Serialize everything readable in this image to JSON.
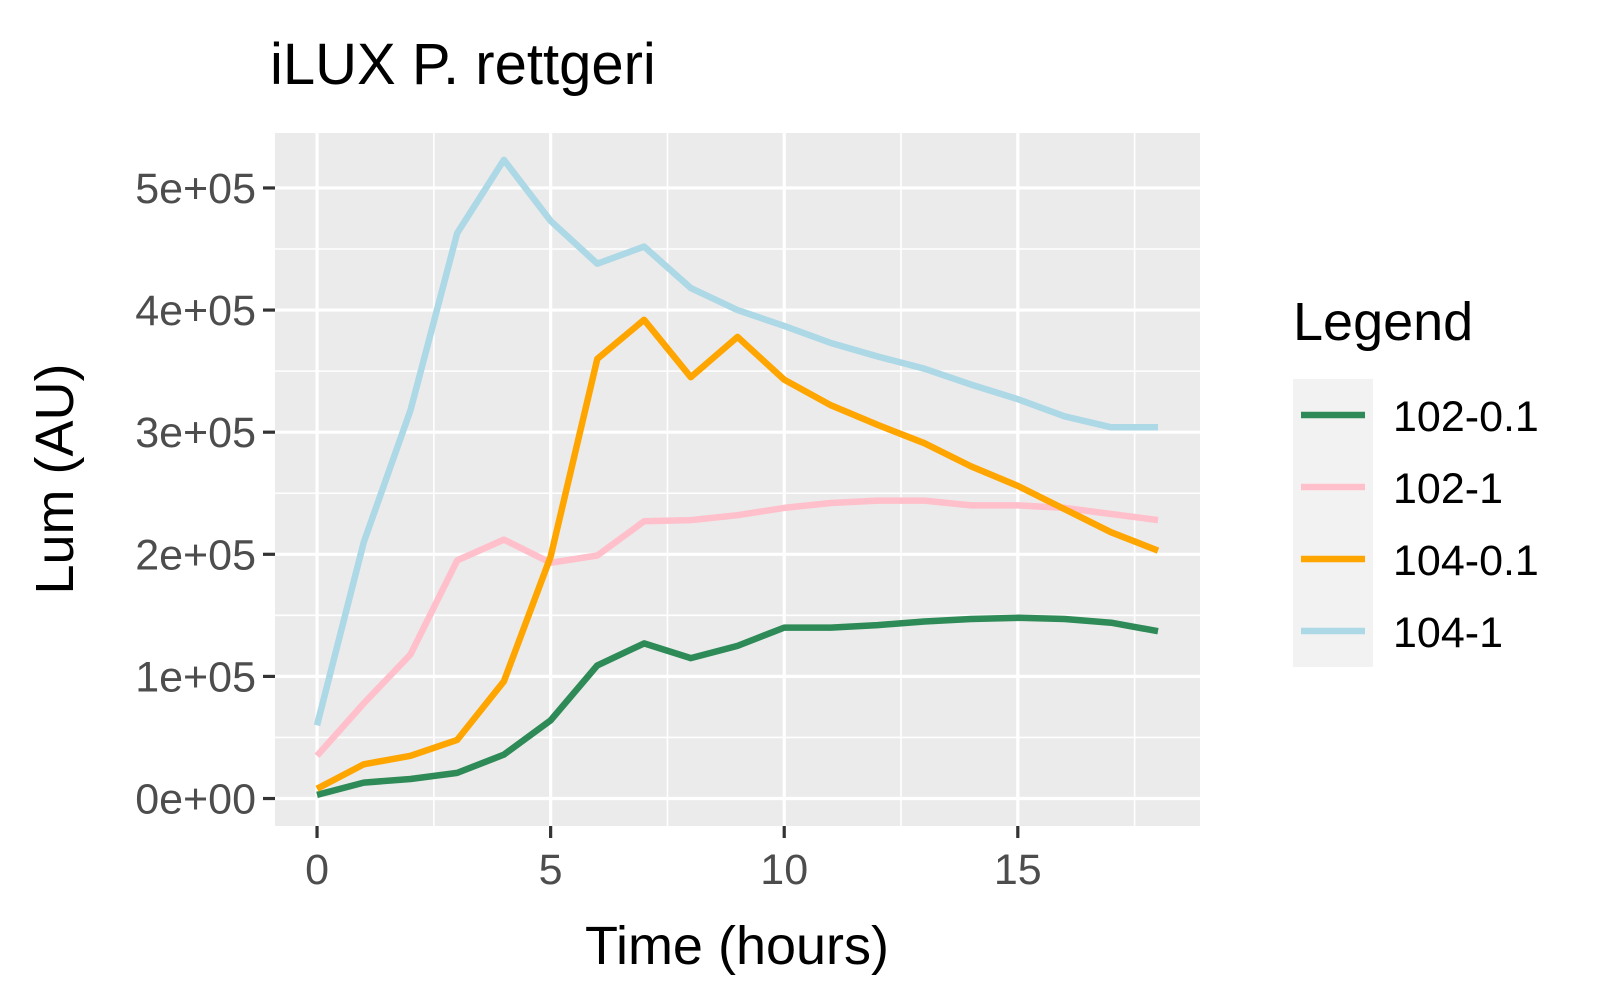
{
  "chart_data": {
    "type": "line",
    "title": "iLUX P. rettgeri",
    "xlabel": "Time (hours)",
    "ylabel": "Lum (AU)",
    "xlim": [
      -0.9,
      18.9
    ],
    "ylim": [
      -22500,
      545000
    ],
    "x_ticks": [
      0,
      5,
      10,
      15
    ],
    "x_tick_labels": [
      "0",
      "5",
      "10",
      "15"
    ],
    "y_ticks": [
      0,
      100000,
      200000,
      300000,
      400000,
      500000
    ],
    "y_tick_labels": [
      "0e+00",
      "1e+05",
      "2e+05",
      "3e+05",
      "4e+05",
      "5e+05"
    ],
    "grid": true,
    "legend": {
      "title": "Legend",
      "position": "right"
    },
    "x": [
      0,
      1,
      2,
      3,
      4,
      5,
      6,
      7,
      8,
      9,
      10,
      11,
      12,
      13,
      14,
      15,
      16,
      17,
      18
    ],
    "series": [
      {
        "name": "102-0.1",
        "color": "#2E8B57",
        "values": [
          3000,
          13000,
          16000,
          21000,
          36000,
          64000,
          109000,
          127000,
          115000,
          125000,
          140000,
          140000,
          142000,
          145000,
          147000,
          148000,
          147000,
          144000,
          137000
        ]
      },
      {
        "name": "102-1",
        "color": "#FFC0CB",
        "values": [
          35000,
          78000,
          118000,
          195000,
          212000,
          193000,
          199000,
          227000,
          228000,
          232000,
          238000,
          242000,
          244000,
          244000,
          240000,
          240000,
          238000,
          233000,
          228000
        ]
      },
      {
        "name": "104-0.1",
        "color": "#FFA500",
        "values": [
          8000,
          28000,
          35000,
          48000,
          96000,
          198000,
          360000,
          392000,
          345000,
          378000,
          343000,
          322000,
          306000,
          291000,
          272000,
          256000,
          237000,
          218000,
          203000
        ]
      },
      {
        "name": "104-1",
        "color": "#ADD8E6",
        "values": [
          60000,
          210000,
          318000,
          463000,
          523000,
          473000,
          438000,
          452000,
          418000,
          400000,
          387000,
          373000,
          362000,
          352000,
          339000,
          327000,
          313000,
          304000,
          304000
        ]
      }
    ]
  }
}
